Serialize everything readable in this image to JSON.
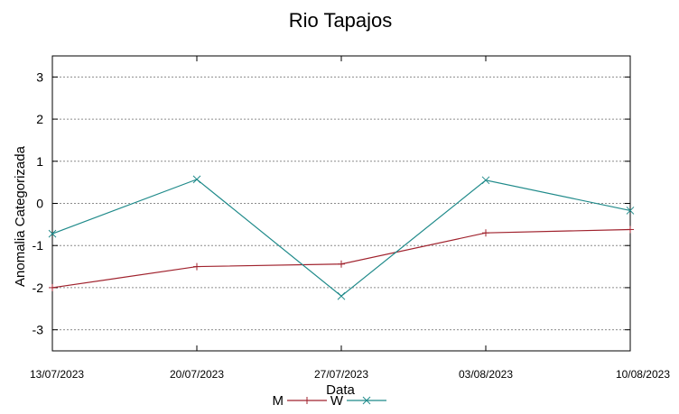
{
  "chart_data": {
    "type": "line",
    "title": "Rio Tapajos",
    "xlabel": "Data",
    "ylabel": "Anomalia Categorizada",
    "x": [
      "13/07/2023",
      "20/07/2023",
      "27/07/2023",
      "03/08/2023",
      "10/08/2023"
    ],
    "ylim": [
      -3.5,
      3.5
    ],
    "yticks": [
      -3,
      -2,
      -1,
      0,
      1,
      2,
      3
    ],
    "grid": "horizontal",
    "legend_position": "bottom",
    "series": [
      {
        "name": "M",
        "color": "#a0222d",
        "marker": "plus",
        "values": [
          -2.0,
          -1.5,
          -1.44,
          -0.7,
          -0.62
        ]
      },
      {
        "name": "W",
        "color": "#1f8a8a",
        "marker": "cross",
        "values": [
          -0.72,
          0.57,
          -2.2,
          0.55,
          -0.17
        ]
      }
    ]
  }
}
